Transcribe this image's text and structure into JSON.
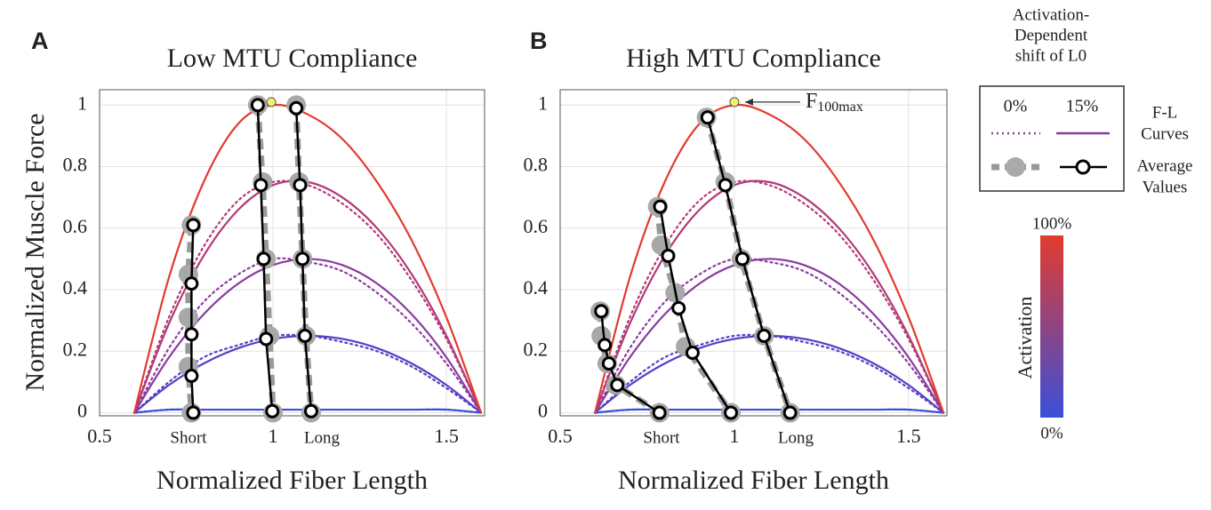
{
  "chart_data": [
    {
      "type": "line",
      "panel_label": "A",
      "title": "Low MTU Compliance",
      "x_label": "Normalized Fiber Length",
      "y_label": "Normalized Muscle Force",
      "xlim": [
        0.5,
        1.61
      ],
      "ylim": [
        -0.01,
        1.05
      ],
      "xticks": [
        0.5,
        1,
        1.5
      ],
      "yticks": [
        0,
        0.2,
        0.4,
        0.6,
        0.8,
        1
      ],
      "grid": true,
      "x": [
        0.6,
        0.7,
        0.8,
        0.9,
        1.0,
        1.1,
        1.2,
        1.3,
        1.4,
        1.5,
        1.6
      ],
      "series": [
        {
          "color": "#3a4fd9",
          "style": "dotted",
          "values": [
            0,
            0.01,
            0.01,
            0.01,
            0.01,
            0.01,
            0.01,
            0.01,
            0.01,
            0.01,
            0
          ]
        },
        {
          "color": "#3a4fd9",
          "style": "solid",
          "values": [
            0,
            0.01,
            0.01,
            0.01,
            0.01,
            0.01,
            0.01,
            0.01,
            0.01,
            0.01,
            0
          ]
        },
        {
          "color": "#5b3fc4",
          "style": "dotted",
          "values": [
            0,
            0.1,
            0.18,
            0.22,
            0.25,
            0.25,
            0.23,
            0.2,
            0.15,
            0.08,
            0
          ]
        },
        {
          "color": "#5b3fc4",
          "style": "solid",
          "values": [
            0,
            0.09,
            0.16,
            0.21,
            0.24,
            0.25,
            0.24,
            0.21,
            0.16,
            0.09,
            0
          ]
        },
        {
          "color": "#8b3aa0",
          "style": "dotted",
          "values": [
            0,
            0.21,
            0.36,
            0.45,
            0.5,
            0.49,
            0.46,
            0.39,
            0.29,
            0.16,
            0
          ]
        },
        {
          "color": "#8b3aa0",
          "style": "solid",
          "values": [
            0,
            0.18,
            0.32,
            0.42,
            0.48,
            0.5,
            0.48,
            0.42,
            0.32,
            0.18,
            0
          ]
        },
        {
          "color": "#b23a78",
          "style": "dotted",
          "values": [
            0,
            0.31,
            0.54,
            0.69,
            0.75,
            0.74,
            0.68,
            0.58,
            0.43,
            0.24,
            0
          ]
        },
        {
          "color": "#b23a78",
          "style": "solid",
          "values": [
            0,
            0.29,
            0.51,
            0.66,
            0.74,
            0.75,
            0.7,
            0.6,
            0.45,
            0.25,
            0
          ]
        },
        {
          "color": "#e23b2e",
          "style": "solid",
          "values": [
            0,
            0.44,
            0.75,
            0.94,
            1,
            0.97,
            0.89,
            0.75,
            0.56,
            0.31,
            0
          ]
        }
      ],
      "averages": [
        {
          "style": "gray",
          "x": [
            0.765,
            0.756,
            0.756,
            0.756,
            0.765
          ],
          "y": [
            0.61,
            0.45,
            0.31,
            0.15,
            0.0
          ]
        },
        {
          "style": "gray",
          "x": [
            0.956,
            0.97,
            0.98,
            0.99,
            1.0
          ],
          "y": [
            1.0,
            0.75,
            0.5,
            0.25,
            0.0
          ]
        },
        {
          "style": "gray",
          "x": [
            1.067,
            1.075,
            1.085,
            1.095,
            1.11
          ],
          "y": [
            1.0,
            0.75,
            0.5,
            0.25,
            0.0
          ]
        },
        {
          "style": "black",
          "x": [
            0.77,
            0.765,
            0.765,
            0.765,
            0.77
          ],
          "y": [
            0.61,
            0.42,
            0.255,
            0.12,
            0.0
          ]
        },
        {
          "style": "black",
          "x": [
            0.956,
            0.965,
            0.973,
            0.98,
            0.998
          ],
          "y": [
            1.0,
            0.74,
            0.5,
            0.24,
            0.005
          ]
        },
        {
          "style": "black",
          "x": [
            1.067,
            1.078,
            1.085,
            1.092,
            1.11
          ],
          "y": [
            0.99,
            0.74,
            0.5,
            0.25,
            0.005
          ]
        }
      ],
      "peak_marker": {
        "x": 0.995,
        "y": 1.01,
        "color": "#f2f26a"
      },
      "short_label": "Short",
      "long_label": "Long"
    },
    {
      "type": "line",
      "panel_label": "B",
      "title": "High MTU Compliance",
      "x_label": "Normalized Fiber Length",
      "xlim": [
        0.5,
        1.61
      ],
      "ylim": [
        -0.01,
        1.05
      ],
      "xticks": [
        0.5,
        1,
        1.5
      ],
      "yticks": [
        0,
        0.2,
        0.4,
        0.6,
        0.8,
        1
      ],
      "grid": true,
      "x": [
        0.6,
        0.7,
        0.8,
        0.9,
        1.0,
        1.1,
        1.2,
        1.3,
        1.4,
        1.5,
        1.6
      ],
      "series": [
        {
          "color": "#3a4fd9",
          "style": "dotted",
          "values": [
            0,
            0.01,
            0.01,
            0.01,
            0.01,
            0.01,
            0.01,
            0.01,
            0.01,
            0.01,
            0
          ]
        },
        {
          "color": "#3a4fd9",
          "style": "solid",
          "values": [
            0,
            0.01,
            0.01,
            0.01,
            0.01,
            0.01,
            0.01,
            0.01,
            0.01,
            0.01,
            0
          ]
        },
        {
          "color": "#5b3fc4",
          "style": "dotted",
          "values": [
            0,
            0.1,
            0.18,
            0.22,
            0.25,
            0.25,
            0.23,
            0.2,
            0.15,
            0.08,
            0
          ]
        },
        {
          "color": "#5b3fc4",
          "style": "solid",
          "values": [
            0,
            0.09,
            0.16,
            0.21,
            0.24,
            0.25,
            0.24,
            0.21,
            0.16,
            0.09,
            0
          ]
        },
        {
          "color": "#8b3aa0",
          "style": "dotted",
          "values": [
            0,
            0.21,
            0.36,
            0.45,
            0.5,
            0.49,
            0.46,
            0.39,
            0.29,
            0.16,
            0
          ]
        },
        {
          "color": "#8b3aa0",
          "style": "solid",
          "values": [
            0,
            0.18,
            0.32,
            0.42,
            0.48,
            0.5,
            0.48,
            0.42,
            0.32,
            0.18,
            0
          ]
        },
        {
          "color": "#b23a78",
          "style": "dotted",
          "values": [
            0,
            0.31,
            0.54,
            0.69,
            0.75,
            0.74,
            0.68,
            0.58,
            0.43,
            0.24,
            0
          ]
        },
        {
          "color": "#b23a78",
          "style": "solid",
          "values": [
            0,
            0.29,
            0.51,
            0.66,
            0.74,
            0.75,
            0.7,
            0.6,
            0.45,
            0.25,
            0
          ]
        },
        {
          "color": "#e23b2e",
          "style": "solid",
          "values": [
            0,
            0.44,
            0.75,
            0.94,
            1,
            0.97,
            0.89,
            0.75,
            0.56,
            0.31,
            0
          ]
        }
      ],
      "averages": [
        {
          "style": "gray",
          "x": [
            0.615,
            0.618,
            0.635,
            0.66,
            0.785
          ],
          "y": [
            0.33,
            0.25,
            0.16,
            0.09,
            0.0
          ]
        },
        {
          "style": "gray",
          "x": [
            0.78,
            0.79,
            0.83,
            0.86,
            0.99
          ],
          "y": [
            0.67,
            0.545,
            0.39,
            0.215,
            0.0
          ]
        },
        {
          "style": "gray",
          "x": [
            0.92,
            0.974,
            1.02,
            1.085,
            1.16
          ],
          "y": [
            0.96,
            0.75,
            0.5,
            0.25,
            0.0
          ]
        },
        {
          "style": "black",
          "x": [
            0.618,
            0.628,
            0.64,
            0.664,
            0.785
          ],
          "y": [
            0.33,
            0.22,
            0.16,
            0.09,
            0.0
          ]
        },
        {
          "style": "black",
          "x": [
            0.787,
            0.81,
            0.84,
            0.88,
            0.99
          ],
          "y": [
            0.67,
            0.51,
            0.34,
            0.195,
            0.0
          ]
        },
        {
          "style": "black",
          "x": [
            0.923,
            0.974,
            1.023,
            1.085,
            1.16
          ],
          "y": [
            0.96,
            0.74,
            0.5,
            0.25,
            0.0
          ]
        }
      ],
      "peak_marker": {
        "x": 1.0,
        "y": 1.01,
        "color": "#f2f26a"
      },
      "peak_annotation": {
        "text": "F",
        "subscript": "100max"
      },
      "short_label": "Short",
      "long_label": "Long"
    }
  ],
  "legend": {
    "title_lines": [
      "Activation-",
      "Dependent",
      "shift of L0"
    ],
    "shift_labels": [
      "0%",
      "15%"
    ],
    "curves_label": [
      "F-L",
      "Curves"
    ],
    "averages_label": [
      "Average",
      "Values"
    ]
  },
  "colorbar": {
    "label": "Activation",
    "max_label": "100%",
    "min_label": "0%",
    "colors": [
      "#e23b2e",
      "#3a4fd9"
    ]
  }
}
